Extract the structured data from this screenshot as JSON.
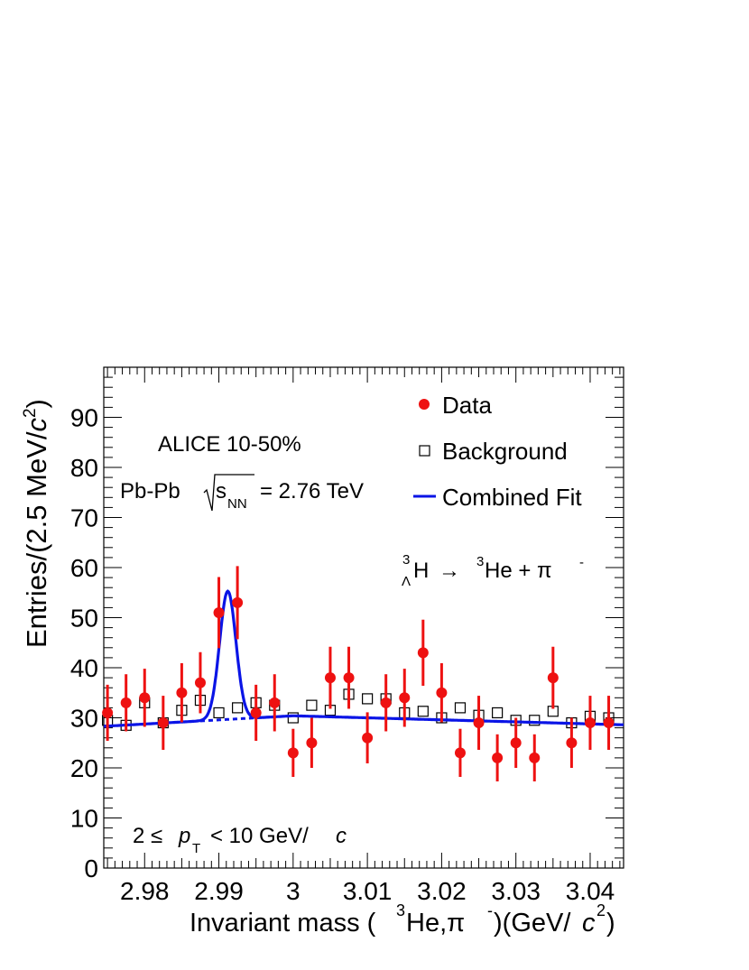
{
  "chart_data": {
    "type": "scatter",
    "xlabel": "Invariant mass (³He,π⁻)(GeV/c²)",
    "ylabel": "Entries/(2.5 MeV/c²)",
    "xlim": [
      2.9745,
      3.0445
    ],
    "ylim": [
      0,
      100
    ],
    "x_ticks": [
      {
        "v": 2.98,
        "label": "2.98"
      },
      {
        "v": 2.99,
        "label": "2.99"
      },
      {
        "v": 3.0,
        "label": "3"
      },
      {
        "v": 3.01,
        "label": "3.01"
      },
      {
        "v": 3.02,
        "label": "3.02"
      },
      {
        "v": 3.03,
        "label": "3.03"
      },
      {
        "v": 3.04,
        "label": "3.04"
      }
    ],
    "y_ticks": [
      {
        "v": 0,
        "label": "0"
      },
      {
        "v": 10,
        "label": "10"
      },
      {
        "v": 20,
        "label": "20"
      },
      {
        "v": 30,
        "label": "30"
      },
      {
        "v": 40,
        "label": "40"
      },
      {
        "v": 50,
        "label": "50"
      },
      {
        "v": 60,
        "label": "60"
      },
      {
        "v": 70,
        "label": "70"
      },
      {
        "v": 80,
        "label": "80"
      },
      {
        "v": 90,
        "label": "90"
      }
    ],
    "series": [
      {
        "name": "Data",
        "kind": "points-with-errors",
        "color": "#ee1111",
        "x": [
          2.975,
          2.9775,
          2.98,
          2.9825,
          2.985,
          2.9875,
          2.99,
          2.9925,
          2.995,
          2.9975,
          3.0,
          3.0025,
          3.005,
          3.0075,
          3.01,
          3.0125,
          3.015,
          3.0175,
          3.02,
          3.0225,
          3.025,
          3.0275,
          3.03,
          3.0325,
          3.035,
          3.0375,
          3.04,
          3.0425
        ],
        "y": [
          31,
          33,
          34,
          29,
          35,
          37,
          51,
          53,
          31,
          33,
          23,
          25,
          38,
          38,
          26,
          33,
          34,
          43,
          35,
          23,
          29,
          22,
          25,
          22,
          38,
          25,
          29,
          29
        ],
        "yerr": [
          5.6,
          5.7,
          5.8,
          5.4,
          5.9,
          6.1,
          7.1,
          7.3,
          5.6,
          5.7,
          4.8,
          5.0,
          6.2,
          6.2,
          5.1,
          5.7,
          5.8,
          6.6,
          5.9,
          4.8,
          5.4,
          4.7,
          5.0,
          4.7,
          6.2,
          5.0,
          5.4,
          5.4
        ]
      },
      {
        "name": "Background",
        "kind": "open-squares",
        "color": "#000000",
        "x": [
          2.975,
          2.9775,
          2.98,
          2.9825,
          2.985,
          2.9875,
          2.99,
          2.9925,
          2.995,
          2.9975,
          3.0,
          3.0025,
          3.005,
          3.0075,
          3.01,
          3.0125,
          3.015,
          3.0175,
          3.02,
          3.0225,
          3.025,
          3.0275,
          3.03,
          3.0325,
          3.035,
          3.0375,
          3.04,
          3.0425
        ],
        "y": [
          29.5,
          28.5,
          33,
          29,
          31.5,
          33.5,
          31,
          32,
          33,
          32.5,
          30,
          32.5,
          31.5,
          34.7,
          33.8,
          33.8,
          31,
          31.3,
          30,
          32,
          30.5,
          31,
          29.5,
          29.5,
          31.3,
          29,
          30.3,
          30
        ]
      },
      {
        "name": "Combined Fit",
        "kind": "fit-line",
        "color": "#0a14e6",
        "background_line": {
          "x": [
            2.9745,
            3.0,
            3.0445
          ],
          "y": [
            28.3,
            30.4,
            28.6
          ]
        },
        "peak": {
          "mean": 2.9912,
          "sigma": 0.0011,
          "amplitude": 25.6
        },
        "dashed_range": [
          2.9875,
          2.9975
        ]
      }
    ]
  },
  "legend": {
    "data_label": "Data",
    "background_label": "Background",
    "fit_label": "Combined Fit"
  },
  "annotations": {
    "experiment": "ALICE 10-50%",
    "system": "Pb-Pb",
    "energy_symbol": "s",
    "energy_sub": "NN",
    "energy_value": "= 2.76 TeV",
    "decay_mass_number": "3",
    "decay_lambda": "Λ",
    "decay_parent": "H",
    "decay_arrow": "→",
    "decay_daughter_mass": "3",
    "decay_daughter": "He + π",
    "decay_minus": "-",
    "pt_range_prefix": "2 ≤",
    "pt_symbol": "p",
    "pt_sub": "T",
    "pt_range_suffix": "< 10 GeV/",
    "pt_c": "c"
  },
  "axis_labels": {
    "x_prefix": "Invariant mass (",
    "x_sup3": "3",
    "x_mid": "He,π",
    "x_minus": "-",
    "x_suffix": ")(GeV/",
    "x_c": "c",
    "x_sq": "2",
    "x_close": ")",
    "y_prefix": "Entries/(2.5 MeV/",
    "y_c": "c",
    "y_sq": "2",
    "y_close": ")"
  }
}
